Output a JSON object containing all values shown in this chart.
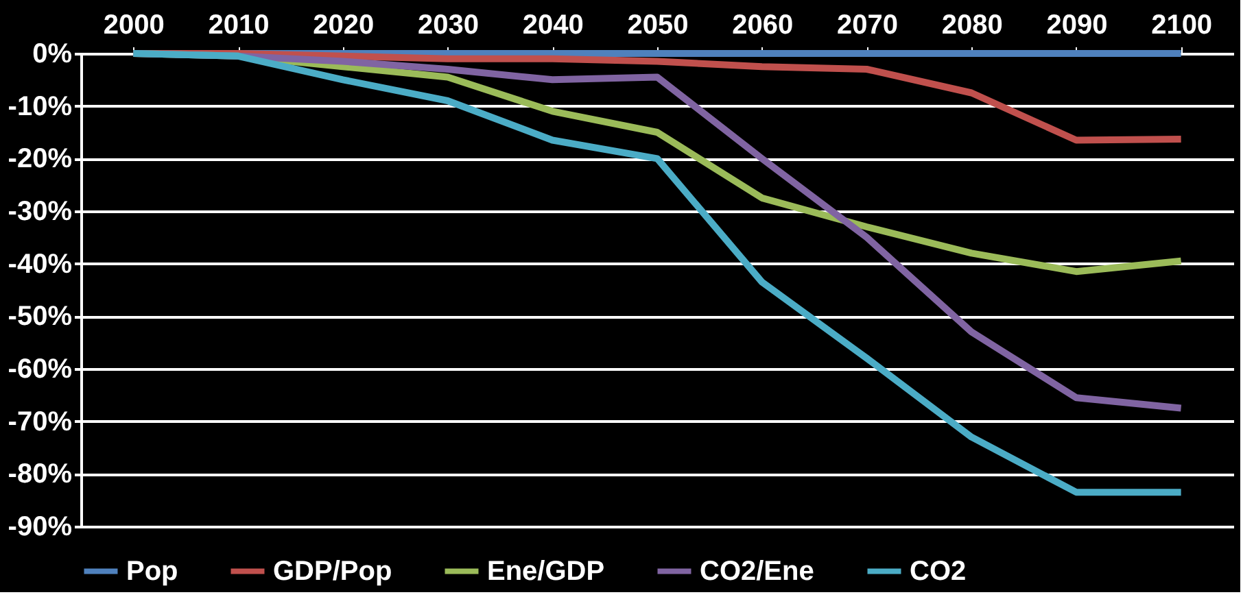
{
  "chart_data": {
    "type": "line",
    "categories": [
      "2000",
      "2010",
      "2020",
      "2030",
      "2040",
      "2050",
      "2060",
      "2070",
      "2080",
      "2090",
      "2100"
    ],
    "series": [
      {
        "name": "Pop",
        "color": "#4f81bd",
        "values": [
          0,
          0,
          0,
          0,
          0,
          0,
          0,
          0,
          0,
          0,
          0
        ]
      },
      {
        "name": "GDP/Pop",
        "color": "#c0504d",
        "values": [
          0,
          0,
          -0.5,
          -1,
          -1,
          -1.5,
          -2.5,
          -3,
          -7.5,
          -16.5,
          -16.3
        ]
      },
      {
        "name": "Ene/GDP",
        "color": "#9bbb59",
        "values": [
          0,
          -0.5,
          -2.5,
          -4.5,
          -11,
          -15,
          -27.5,
          -33,
          -38,
          -41.5,
          -39.5
        ]
      },
      {
        "name": "CO2/Ene",
        "color": "#8064a2",
        "values": [
          0,
          -0.5,
          -1.5,
          -3,
          -5,
          -4.5,
          -20,
          -35,
          -53,
          -65.5,
          -67.5
        ]
      },
      {
        "name": "CO2",
        "color": "#4bacc6",
        "values": [
          0,
          -0.5,
          -5,
          -9,
          -16.5,
          -20,
          -43.5,
          -58,
          -73,
          -83.5,
          -83.5
        ]
      }
    ],
    "ylim": [
      -90,
      0
    ],
    "yticks": [
      {
        "value": 0,
        "label": "0%"
      },
      {
        "value": -10,
        "label": "-10%"
      },
      {
        "value": -20,
        "label": "-20%"
      },
      {
        "value": -30,
        "label": "-30%"
      },
      {
        "value": -40,
        "label": "-40%"
      },
      {
        "value": -50,
        "label": "-50%"
      },
      {
        "value": -60,
        "label": "-60%"
      },
      {
        "value": -70,
        "label": "-70%"
      },
      {
        "value": -80,
        "label": "-80%"
      },
      {
        "value": -90,
        "label": "-90%"
      }
    ],
    "grid": "y",
    "legend": "bottom",
    "marker": "none",
    "line_style": "solid"
  }
}
